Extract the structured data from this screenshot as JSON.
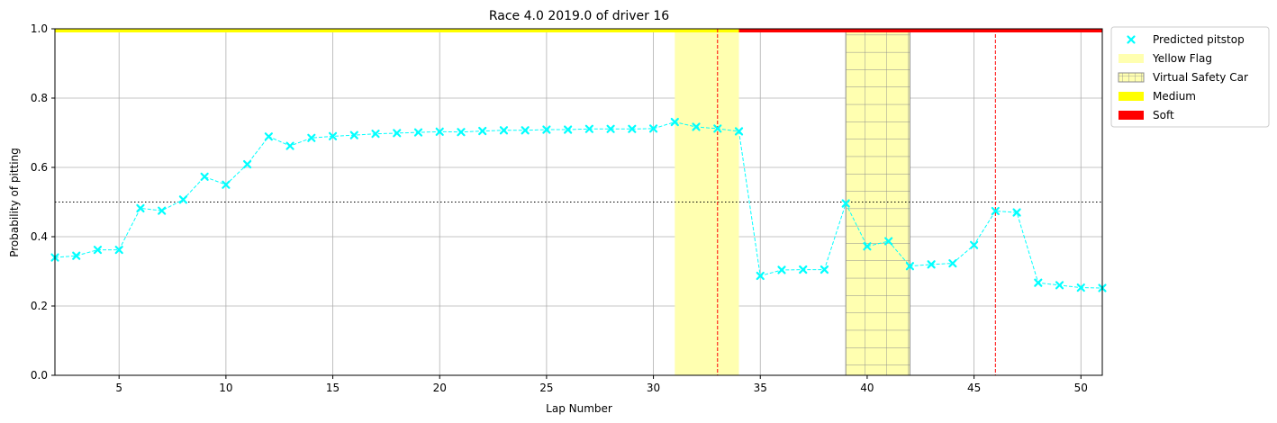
{
  "chart_data": {
    "type": "line",
    "title": "Race 4.0 2019.0 of driver 16",
    "xlabel": "Lap Number",
    "ylabel": "Probability of pitting",
    "xlim": [
      2,
      51
    ],
    "ylim": [
      0,
      1
    ],
    "xticks": [
      5,
      10,
      15,
      20,
      25,
      30,
      35,
      40,
      45,
      50
    ],
    "yticks": [
      0.0,
      0.2,
      0.4,
      0.6,
      0.8,
      1.0
    ],
    "ytick_labels": [
      "0.0",
      "0.2",
      "0.4",
      "0.6",
      "0.8",
      "1.0"
    ],
    "grid": true,
    "legend_position": "outside-upper-right",
    "threshold": 0.5,
    "series": [
      {
        "name": "Predicted pitstop",
        "color": "#00ffff",
        "marker": "x",
        "x": [
          2,
          3,
          4,
          5,
          6,
          7,
          8,
          9,
          10,
          11,
          12,
          13,
          14,
          15,
          16,
          17,
          18,
          19,
          20,
          21,
          22,
          23,
          24,
          25,
          26,
          27,
          28,
          29,
          30,
          31,
          32,
          33,
          34,
          35,
          36,
          37,
          38,
          39,
          40,
          41,
          42,
          43,
          44,
          45,
          46,
          47,
          48,
          49,
          50,
          51
        ],
        "values": [
          0.34,
          0.345,
          0.362,
          0.362,
          0.482,
          0.475,
          0.507,
          0.573,
          0.55,
          0.609,
          0.689,
          0.662,
          0.685,
          0.69,
          0.693,
          0.697,
          0.699,
          0.701,
          0.703,
          0.702,
          0.705,
          0.707,
          0.707,
          0.709,
          0.709,
          0.711,
          0.711,
          0.711,
          0.712,
          0.731,
          0.717,
          0.712,
          0.704,
          0.287,
          0.304,
          0.305,
          0.305,
          0.496,
          0.372,
          0.387,
          0.315,
          0.32,
          0.323,
          0.376,
          0.474,
          0.47,
          0.267,
          0.26,
          0.253,
          0.252
        ]
      }
    ],
    "pit_laps": [
      33,
      46
    ],
    "yellow_flag": [
      {
        "start": 31,
        "end": 34
      }
    ],
    "virtual_safety_car": [
      {
        "start": 39,
        "end": 42
      }
    ],
    "tyre_stints": [
      {
        "name": "Medium",
        "start": 2,
        "end": 34,
        "color": "#ffff00"
      },
      {
        "name": "Soft",
        "start": 34,
        "end": 51,
        "color": "#ff0000"
      }
    ],
    "legend": [
      {
        "label": "Predicted pitstop",
        "kind": "marker",
        "color": "#00ffff"
      },
      {
        "label": "Yellow Flag",
        "kind": "patch",
        "color": "#ffffb0"
      },
      {
        "label": "Virtual Safety Car",
        "kind": "hatch",
        "color": "#ffffb0"
      },
      {
        "label": "Medium",
        "kind": "patch",
        "color": "#ffff00"
      },
      {
        "label": "Soft",
        "kind": "patch",
        "color": "#ff0000"
      }
    ]
  }
}
